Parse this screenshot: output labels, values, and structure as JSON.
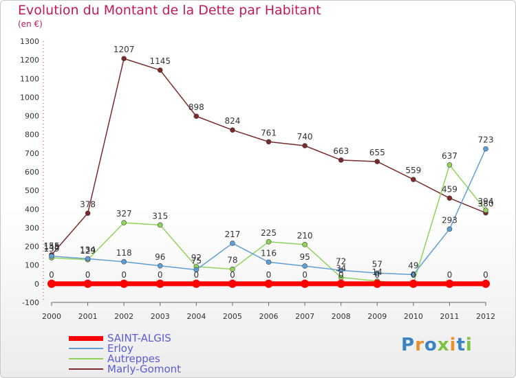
{
  "header": {
    "title": "Evolution du Montant de la Dette par Habitant",
    "subtitle": "(en €)"
  },
  "logo": {
    "text": "Proxiti",
    "letters": [
      {
        "ch": "P",
        "color": "#3b82c4"
      },
      {
        "ch": "r",
        "color": "#e8912c"
      },
      {
        "ch": "o",
        "color": "#3b82c4"
      },
      {
        "ch": "x",
        "color": "#7cc242"
      },
      {
        "ch": "i",
        "color": "#e8912c"
      },
      {
        "ch": "t",
        "color": "#3b82c4"
      },
      {
        "ch": "i",
        "color": "#7cc242"
      }
    ]
  },
  "chart_data": {
    "type": "line",
    "title": "Evolution du Montant de la Dette par Habitant",
    "subtitle": "(en €)",
    "xlabel": "",
    "ylabel": "",
    "x": [
      "2000",
      "2001",
      "2002",
      "2003",
      "2004",
      "2005",
      "2006",
      "2007",
      "2008",
      "2009",
      "2010",
      "2011",
      "2012"
    ],
    "ylim": [
      -100,
      1300
    ],
    "yticks": [
      -100,
      0,
      100,
      200,
      300,
      400,
      500,
      600,
      700,
      800,
      900,
      1000,
      1100,
      1200,
      1300
    ],
    "grid": false,
    "legend_position": "bottom-left",
    "series": [
      {
        "name": "SAINT-ALGIS",
        "color": "#ff0000",
        "width": 7,
        "values": [
          0,
          0,
          0,
          0,
          0,
          0,
          0,
          0,
          0,
          0,
          0,
          0,
          0
        ],
        "labels": [
          "0",
          "0",
          "0",
          "0",
          "0",
          "0",
          "0",
          "0",
          "0",
          "0",
          "0",
          "0",
          "0"
        ]
      },
      {
        "name": "Erloy",
        "color": "#5e9ed6",
        "width": 1.5,
        "values": [
          148,
          134,
          118,
          96,
          75,
          217,
          116,
          95,
          72,
          57,
          49,
          293,
          723
        ],
        "labels": [
          "148",
          "134",
          "118",
          "96",
          "75",
          "217",
          "116",
          "95",
          "72",
          "57",
          "49",
          "293",
          "723"
        ]
      },
      {
        "name": "Autreppes",
        "color": "#8fd35a",
        "width": 1.5,
        "values": [
          139,
          129,
          327,
          315,
          92,
          78,
          225,
          210,
          34,
          14,
          0,
          637,
          394
        ],
        "labels": [
          "139",
          "129",
          "327",
          "315",
          "92",
          "78",
          "225",
          "210",
          "34",
          "14",
          "0",
          "637",
          "394"
        ]
      },
      {
        "name": "Marly-Gomont",
        "color": "#7a2a2a",
        "width": 1.5,
        "values": [
          155,
          378,
          1207,
          1145,
          898,
          824,
          761,
          740,
          663,
          655,
          559,
          459,
          380
        ],
        "labels": [
          "155",
          "378",
          "1207",
          "1145",
          "898",
          "824",
          "761",
          "740",
          "663",
          "655",
          "559",
          "459",
          "380"
        ]
      }
    ]
  }
}
